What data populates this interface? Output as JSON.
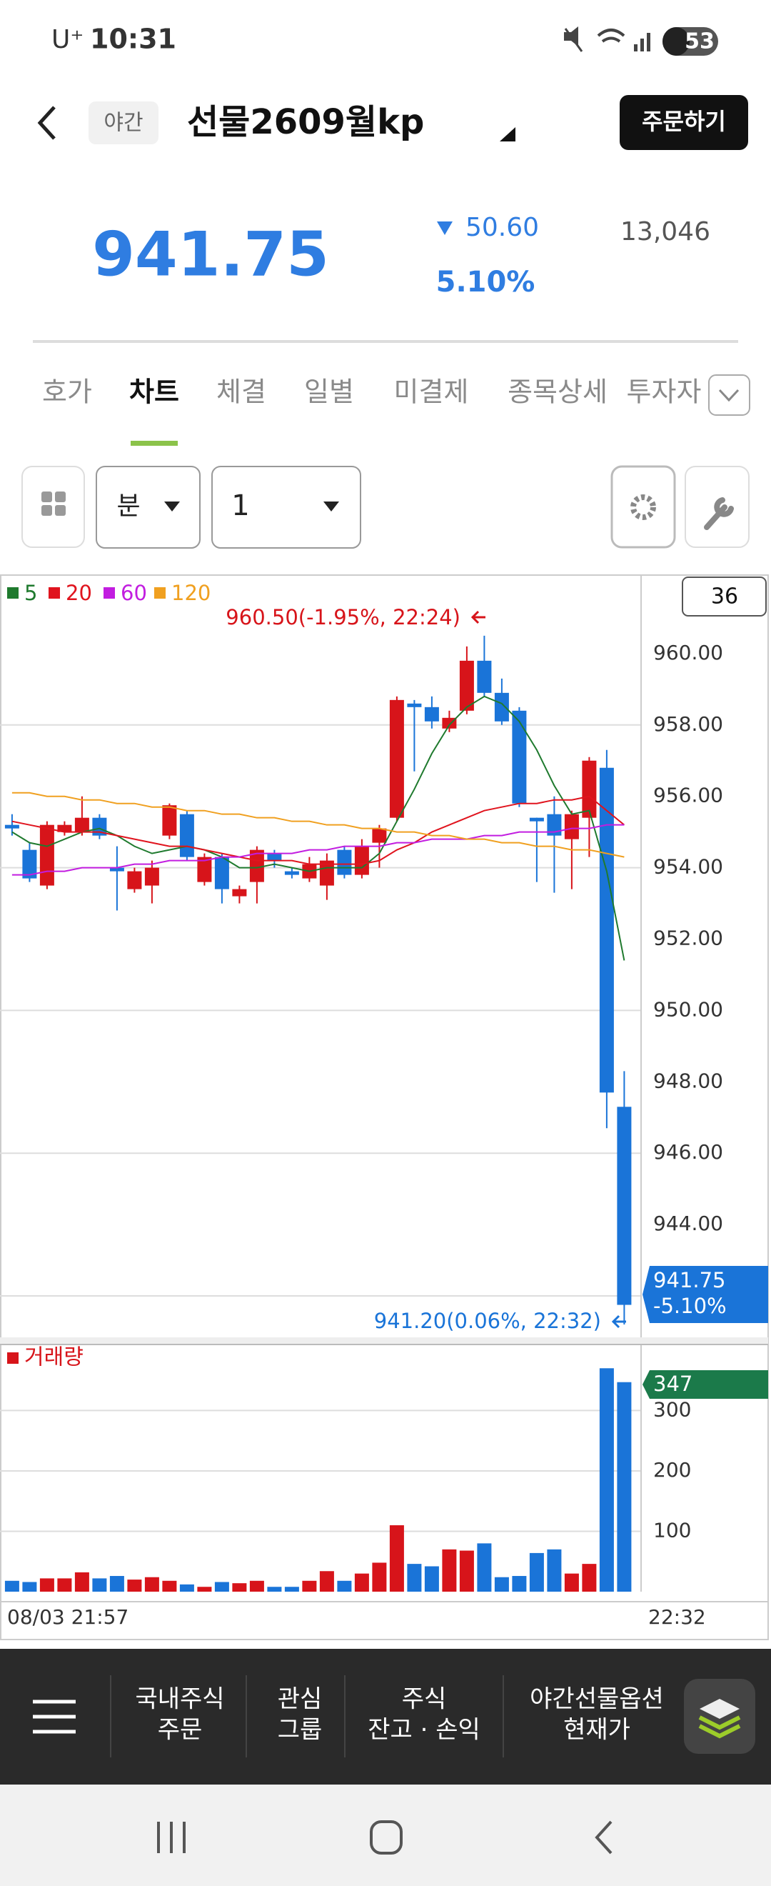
{
  "status_bar": {
    "carrier": "U⁺",
    "time": "10:31",
    "battery": "53"
  },
  "header": {
    "badge": "야간",
    "title": "선물2609월kp",
    "order_button": "주문하기"
  },
  "quote": {
    "price": "941.75",
    "change": "50.60",
    "change_rate": "5.10%",
    "volume": "13,046"
  },
  "tabs": {
    "items": [
      "호가",
      "차트",
      "체결",
      "일별",
      "미결제",
      "종목상세",
      "투자자"
    ],
    "selected": 1
  },
  "toolbar": {
    "unit": "분",
    "interval": "1"
  },
  "chart_data": {
    "type": "candlestick",
    "categories": [
      "08/03 21:57",
      null,
      null,
      null,
      null,
      null,
      null,
      null,
      null,
      null,
      null,
      null,
      null,
      null,
      null,
      null,
      null,
      null,
      null,
      null,
      null,
      null,
      null,
      null,
      null,
      null,
      null,
      null,
      null,
      null,
      null,
      null,
      null,
      null,
      null,
      "22:32"
    ],
    "open": [
      955.2,
      954.5,
      953.5,
      955.0,
      955.0,
      955.4,
      954.0,
      953.4,
      953.5,
      954.9,
      955.5,
      953.6,
      954.3,
      953.2,
      953.6,
      954.4,
      953.9,
      953.7,
      953.5,
      954.5,
      953.8,
      954.7,
      955.4,
      958.6,
      958.5,
      957.9,
      958.4,
      959.8,
      958.9,
      958.4,
      955.4,
      955.5,
      954.8,
      955.4,
      956.8,
      947.3
    ],
    "high": [
      955.5,
      954.7,
      955.3,
      955.3,
      956.0,
      955.5,
      954.6,
      954.0,
      954.2,
      955.8,
      955.6,
      954.4,
      954.4,
      953.5,
      954.6,
      954.5,
      954.0,
      954.3,
      954.4,
      954.6,
      954.8,
      955.2,
      958.8,
      958.7,
      958.8,
      958.4,
      960.2,
      960.5,
      959.3,
      958.5,
      955.4,
      956.0,
      955.6,
      957.1,
      957.3,
      948.3
    ],
    "low": [
      954.9,
      953.6,
      953.4,
      954.9,
      954.9,
      954.8,
      952.8,
      953.3,
      953.0,
      954.8,
      954.2,
      953.5,
      953.0,
      953.0,
      953.0,
      954.0,
      953.7,
      953.6,
      953.1,
      953.7,
      953.7,
      954.0,
      955.3,
      956.7,
      957.9,
      957.8,
      958.3,
      958.8,
      958.0,
      955.7,
      953.6,
      953.3,
      953.4,
      954.3,
      946.7,
      941.2
    ],
    "close": [
      955.1,
      953.7,
      955.2,
      955.2,
      955.4,
      954.9,
      953.9,
      953.9,
      954.0,
      955.75,
      954.3,
      954.3,
      953.4,
      953.4,
      954.5,
      954.2,
      953.8,
      954.1,
      954.2,
      953.8,
      954.6,
      955.1,
      958.7,
      958.5,
      958.1,
      958.2,
      959.8,
      958.9,
      958.1,
      955.8,
      955.3,
      954.9,
      955.5,
      957.0,
      947.7,
      941.75
    ],
    "up_color": "#d7141a",
    "down_color": "#1a74d8",
    "series": [
      {
        "name": "5",
        "color": "#1f7a2e",
        "values": [
          955.0,
          954.7,
          954.6,
          954.8,
          955.0,
          955.1,
          954.9,
          954.6,
          954.4,
          954.5,
          954.6,
          954.5,
          954.3,
          954.0,
          954.0,
          954.1,
          954.0,
          953.9,
          954.0,
          954.0,
          954.0,
          954.4,
          955.3,
          956.2,
          957.2,
          958.0,
          958.5,
          958.8,
          958.6,
          958.1,
          957.3,
          956.3,
          955.5,
          955.6,
          953.9,
          951.4
        ]
      },
      {
        "name": "20",
        "color": "#e0141e",
        "values": [
          955.3,
          955.2,
          955.1,
          955.0,
          955.0,
          955.0,
          954.9,
          954.8,
          954.7,
          954.6,
          954.6,
          954.5,
          954.4,
          954.3,
          954.2,
          954.2,
          954.2,
          954.1,
          954.1,
          954.1,
          954.1,
          954.2,
          954.5,
          954.7,
          955.0,
          955.2,
          955.4,
          955.6,
          955.7,
          955.8,
          955.8,
          955.9,
          955.9,
          956.0,
          955.6,
          955.2
        ]
      },
      {
        "name": "60",
        "color": "#c21de0",
        "values": [
          953.8,
          953.8,
          953.9,
          953.9,
          954.0,
          954.0,
          954.0,
          954.1,
          954.1,
          954.2,
          954.2,
          954.2,
          954.3,
          954.3,
          954.4,
          954.4,
          954.4,
          954.5,
          954.5,
          954.6,
          954.6,
          954.6,
          954.7,
          954.7,
          954.8,
          954.8,
          954.8,
          954.9,
          954.9,
          955.0,
          955.0,
          955.0,
          955.1,
          955.1,
          955.2,
          955.2
        ]
      },
      {
        "name": "120",
        "color": "#f0a020",
        "values": [
          956.1,
          956.1,
          956.0,
          956.0,
          955.9,
          955.9,
          955.8,
          955.8,
          955.7,
          955.7,
          955.6,
          955.6,
          955.5,
          955.5,
          955.4,
          955.4,
          955.3,
          955.3,
          955.2,
          955.2,
          955.1,
          955.1,
          955.0,
          955.0,
          954.9,
          954.9,
          954.8,
          954.8,
          954.7,
          954.7,
          954.6,
          954.6,
          954.5,
          954.5,
          954.4,
          954.3
        ]
      }
    ],
    "ylim": [
      940.9,
      962.2
    ],
    "yticks": [
      {
        "value": 944,
        "label": "944.00"
      },
      {
        "value": 946,
        "label": "946.00"
      },
      {
        "value": 948,
        "label": "948.00"
      },
      {
        "value": 950,
        "label": "950.00"
      },
      {
        "value": 952,
        "label": "952.00"
      },
      {
        "value": 954,
        "label": "954.00"
      },
      {
        "value": 956,
        "label": "956.00"
      },
      {
        "value": 958,
        "label": "958.00"
      },
      {
        "value": 960,
        "label": "960.00"
      }
    ],
    "gridlines": [
      942,
      946,
      950,
      954,
      958
    ],
    "candle_count": "36",
    "high_label": "960.50(-1.95%, 22:24)",
    "low_label": "941.20(0.06%, 22:32)",
    "last_change_label": "-5.10%",
    "volume": {
      "name": "거래량",
      "color": "#d7141a",
      "values": [
        18,
        16,
        22,
        22,
        32,
        22,
        26,
        20,
        24,
        18,
        12,
        8,
        16,
        14,
        18,
        8,
        8,
        18,
        34,
        18,
        30,
        48,
        110,
        46,
        42,
        70,
        68,
        80,
        24,
        26,
        64,
        70,
        30,
        46,
        370,
        347
      ],
      "ylim": [
        0,
        407
      ],
      "yticks": [
        100,
        200,
        300
      ],
      "tag_color": "#1b7a4a"
    }
  },
  "bottom_nav": {
    "items": [
      [
        "국내주식",
        "주문"
      ],
      [
        "관심",
        "그룹"
      ],
      [
        "주식",
        "잔고 · 손익"
      ],
      [
        "야간선물옵션",
        "현재가"
      ]
    ]
  }
}
